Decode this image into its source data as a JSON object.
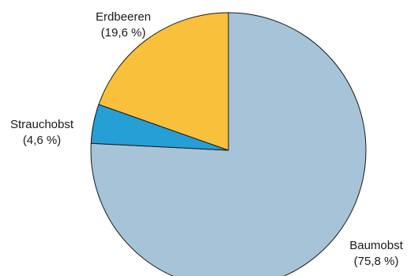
{
  "chart_data": {
    "type": "pie",
    "title": "",
    "start": "top",
    "direction": "clockwise",
    "slices": [
      {
        "label": "Baumobst",
        "value": 75.8,
        "value_label": "(75,8 %)",
        "color": "#a6c3d8"
      },
      {
        "label": "Strauchobst",
        "value": 4.6,
        "value_label": "(4,6 %)",
        "color": "#259fd6"
      },
      {
        "label": "Erdbeeren",
        "value": 19.6,
        "value_label": "(19,6 %)",
        "color": "#f9c03b"
      }
    ]
  }
}
